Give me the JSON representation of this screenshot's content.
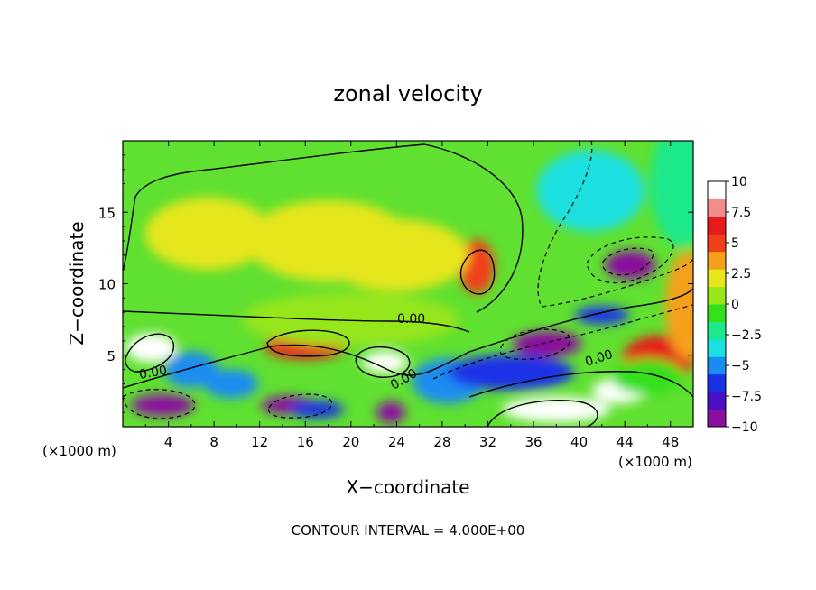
{
  "chart_data": {
    "type": "heatmap",
    "title": "zonal velocity",
    "xlabel": "X−coordinate",
    "ylabel": "Z−coordinate",
    "x_unit_label": "(×1000 m)",
    "z_unit_label": "(×1000 m)",
    "footer": "CONTOUR INTERVAL = 4.000E+00",
    "xlim": [
      0,
      50
    ],
    "ylim": [
      0,
      20
    ],
    "x_ticks": [
      "4",
      "8",
      "12",
      "16",
      "20",
      "24",
      "28",
      "32",
      "36",
      "40",
      "44",
      "48"
    ],
    "x_tick_values": [
      4,
      8,
      12,
      16,
      20,
      24,
      28,
      32,
      36,
      40,
      44,
      48
    ],
    "y_ticks": [
      "5",
      "10",
      "15"
    ],
    "y_tick_values": [
      5,
      10,
      15
    ],
    "colorbar": {
      "min": -10,
      "max": 10,
      "labels": [
        "10",
        "7.5",
        "5",
        "2.5",
        "0",
        "−2.5",
        "−5",
        "−7.5",
        "−10"
      ],
      "label_values": [
        10,
        7.5,
        5,
        2.5,
        0,
        -2.5,
        -5,
        -7.5,
        -10
      ],
      "colors": [
        "#8a0f9e",
        "#4a10c8",
        "#1a32e6",
        "#1a8cf0",
        "#1ae0e0",
        "#1ce88c",
        "#34e01a",
        "#96e61a",
        "#e6e61a",
        "#f5a01a",
        "#f0401a",
        "#e61a1a",
        "#f58c8c",
        "#ffffff"
      ]
    },
    "contour_labels": [
      "0.00",
      "0.00",
      "0.00",
      "0.00"
    ],
    "features": [
      {
        "x": 41,
        "z": 16.5,
        "value": -4
      },
      {
        "x": 44.5,
        "z": 11.3,
        "value": -10
      },
      {
        "x": 37.2,
        "z": 5.8,
        "value": -10
      },
      {
        "x": 42,
        "z": 7.8,
        "value": -7
      },
      {
        "x": 31,
        "z": 11.2,
        "value": 4.5
      },
      {
        "x": 24,
        "z": 12,
        "value": 2.5
      },
      {
        "x": 18,
        "z": 13,
        "value": 2
      },
      {
        "x": 7.5,
        "z": 13.5,
        "value": 1.5
      },
      {
        "x": 2.5,
        "z": 5.5,
        "value": 10
      },
      {
        "x": 16,
        "z": 5.6,
        "value": 7
      },
      {
        "x": 23,
        "z": 4.5,
        "value": 10
      },
      {
        "x": 6,
        "z": 4.0,
        "value": -5
      },
      {
        "x": 9.5,
        "z": 3.0,
        "value": -5
      },
      {
        "x": 3.5,
        "z": 1.5,
        "value": -10
      },
      {
        "x": 14.5,
        "z": 1.5,
        "value": -9
      },
      {
        "x": 23.5,
        "z": 1.0,
        "value": -10
      },
      {
        "x": 17,
        "z": 1.2,
        "value": -6
      },
      {
        "x": 28.5,
        "z": 3.2,
        "value": -5
      },
      {
        "x": 34,
        "z": 3.8,
        "value": -7
      },
      {
        "x": 38,
        "z": 1.2,
        "value": 10
      },
      {
        "x": 43.5,
        "z": 2.5,
        "value": 9
      },
      {
        "x": 47,
        "z": 4.8,
        "value": 6
      },
      {
        "x": 49.5,
        "z": 8.5,
        "value": 3
      },
      {
        "x": 49,
        "z": 17,
        "value": -2
      },
      {
        "x": 46,
        "z": 3.5,
        "value": -1
      },
      {
        "x": 20,
        "z": 7.5,
        "value": 0.5
      }
    ]
  }
}
